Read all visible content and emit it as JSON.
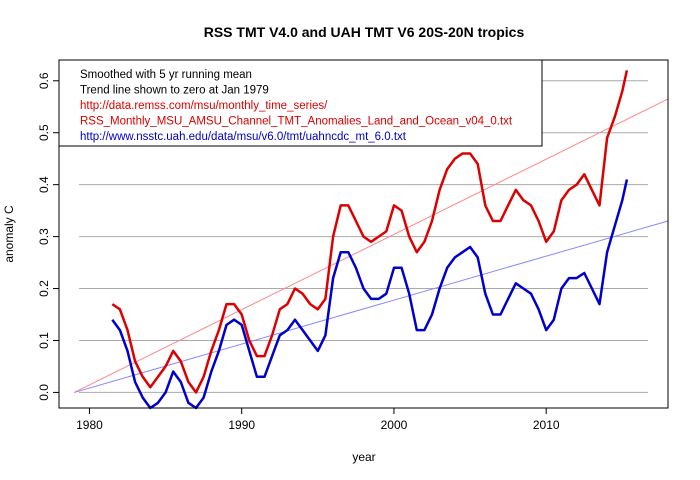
{
  "chart_data": {
    "type": "line",
    "title": "RSS TMT V4.0 and UAH TMT V6 20S-20N tropics",
    "xlabel": "year",
    "ylabel": "anomaly C",
    "xlim": [
      1978.0,
      2018.0
    ],
    "ylim": [
      -0.03,
      0.64
    ],
    "xticks": [
      "1980",
      "1990",
      "2000",
      "2010"
    ],
    "yticks": [
      "0.0",
      "0.1",
      "0.2",
      "0.3",
      "0.4",
      "0.5",
      "0.6"
    ],
    "grid": "horizontal",
    "legend_position": "top-left",
    "legend": [
      {
        "text": "Smoothed with 5 yr running mean",
        "color": "#000000"
      },
      {
        "text": "Trend line shown to zero at Jan 1979",
        "color": "#000000"
      },
      {
        "text": "http://data.remss.com/msu/monthly_time_series/",
        "color": "#dd0000"
      },
      {
        "text": "RSS_Monthly_MSU_AMSU_Channel_TMT_Anomalies_Land_and_Ocean_v04_0.txt",
        "color": "#dd0000"
      },
      {
        "text": "http://www.nsstc.uah.edu/data/msu/v6.0/tmt/uahncdc_mt_6.0.txt",
        "color": "#0000cc"
      }
    ],
    "series": [
      {
        "color": "#dd0000",
        "x": [
          1981.5,
          1982.0,
          1982.5,
          1983.0,
          1983.5,
          1984.0,
          1984.5,
          1985.0,
          1985.5,
          1986.0,
          1986.5,
          1987.0,
          1987.5,
          1988.0,
          1988.5,
          1989.0,
          1989.5,
          1990.0,
          1990.5,
          1991.0,
          1991.5,
          1992.0,
          1992.5,
          1993.0,
          1993.5,
          1994.0,
          1994.5,
          1995.0,
          1995.5,
          1996.0,
          1996.5,
          1997.0,
          1997.5,
          1998.0,
          1998.5,
          1999.0,
          1999.5,
          2000.0,
          2000.5,
          2001.0,
          2001.5,
          2002.0,
          2002.5,
          2003.0,
          2003.5,
          2004.0,
          2004.5,
          2005.0,
          2005.5,
          2006.0,
          2006.5,
          2007.0,
          2007.5,
          2008.0,
          2008.5,
          2009.0,
          2009.5,
          2010.0,
          2010.5,
          2011.0,
          2011.5,
          2012.0,
          2012.5,
          2013.0,
          2013.5,
          2014.0,
          2014.5,
          2015.0,
          2015.3
        ],
        "y": [
          0.17,
          0.16,
          0.12,
          0.06,
          0.03,
          0.01,
          0.03,
          0.05,
          0.08,
          0.06,
          0.02,
          0.0,
          0.03,
          0.08,
          0.12,
          0.17,
          0.17,
          0.15,
          0.1,
          0.07,
          0.07,
          0.11,
          0.16,
          0.17,
          0.2,
          0.19,
          0.17,
          0.16,
          0.18,
          0.3,
          0.36,
          0.36,
          0.33,
          0.3,
          0.29,
          0.3,
          0.31,
          0.36,
          0.35,
          0.3,
          0.27,
          0.29,
          0.33,
          0.39,
          0.43,
          0.45,
          0.46,
          0.46,
          0.44,
          0.36,
          0.33,
          0.33,
          0.36,
          0.39,
          0.37,
          0.36,
          0.33,
          0.29,
          0.31,
          0.37,
          0.39,
          0.4,
          0.42,
          0.39,
          0.36,
          0.49,
          0.53,
          0.58,
          0.62
        ]
      },
      {
        "color": "#0000cc",
        "x": [
          1981.5,
          1982.0,
          1982.5,
          1983.0,
          1983.5,
          1984.0,
          1984.5,
          1985.0,
          1985.5,
          1986.0,
          1986.5,
          1987.0,
          1987.5,
          1988.0,
          1988.5,
          1989.0,
          1989.5,
          1990.0,
          1990.5,
          1991.0,
          1991.5,
          1992.0,
          1992.5,
          1993.0,
          1993.5,
          1994.0,
          1994.5,
          1995.0,
          1995.5,
          1996.0,
          1996.5,
          1997.0,
          1997.5,
          1998.0,
          1998.5,
          1999.0,
          1999.5,
          2000.0,
          2000.5,
          2001.0,
          2001.5,
          2002.0,
          2002.5,
          2003.0,
          2003.5,
          2004.0,
          2004.5,
          2005.0,
          2005.5,
          2006.0,
          2006.5,
          2007.0,
          2007.5,
          2008.0,
          2008.5,
          2009.0,
          2009.5,
          2010.0,
          2010.5,
          2011.0,
          2011.5,
          2012.0,
          2012.5,
          2013.0,
          2013.5,
          2014.0,
          2014.5,
          2015.0,
          2015.3
        ],
        "y": [
          0.14,
          0.12,
          0.08,
          0.02,
          -0.01,
          -0.03,
          -0.02,
          0.0,
          0.04,
          0.02,
          -0.02,
          -0.03,
          -0.01,
          0.04,
          0.08,
          0.13,
          0.14,
          0.13,
          0.08,
          0.03,
          0.03,
          0.07,
          0.11,
          0.12,
          0.14,
          0.12,
          0.1,
          0.08,
          0.11,
          0.22,
          0.27,
          0.27,
          0.24,
          0.2,
          0.18,
          0.18,
          0.19,
          0.24,
          0.24,
          0.19,
          0.12,
          0.12,
          0.15,
          0.2,
          0.24,
          0.26,
          0.27,
          0.28,
          0.26,
          0.19,
          0.15,
          0.15,
          0.18,
          0.21,
          0.2,
          0.19,
          0.16,
          0.12,
          0.14,
          0.2,
          0.22,
          0.22,
          0.23,
          0.2,
          0.17,
          0.27,
          0.32,
          0.37,
          0.41
        ]
      }
    ],
    "trend_lines": [
      {
        "color": "#ff8888",
        "x": [
          1979.0,
          2018.0
        ],
        "y": [
          0.0,
          0.565
        ]
      },
      {
        "color": "#8888ff",
        "x": [
          1979.0,
          2018.0
        ],
        "y": [
          0.0,
          0.33
        ]
      }
    ]
  }
}
